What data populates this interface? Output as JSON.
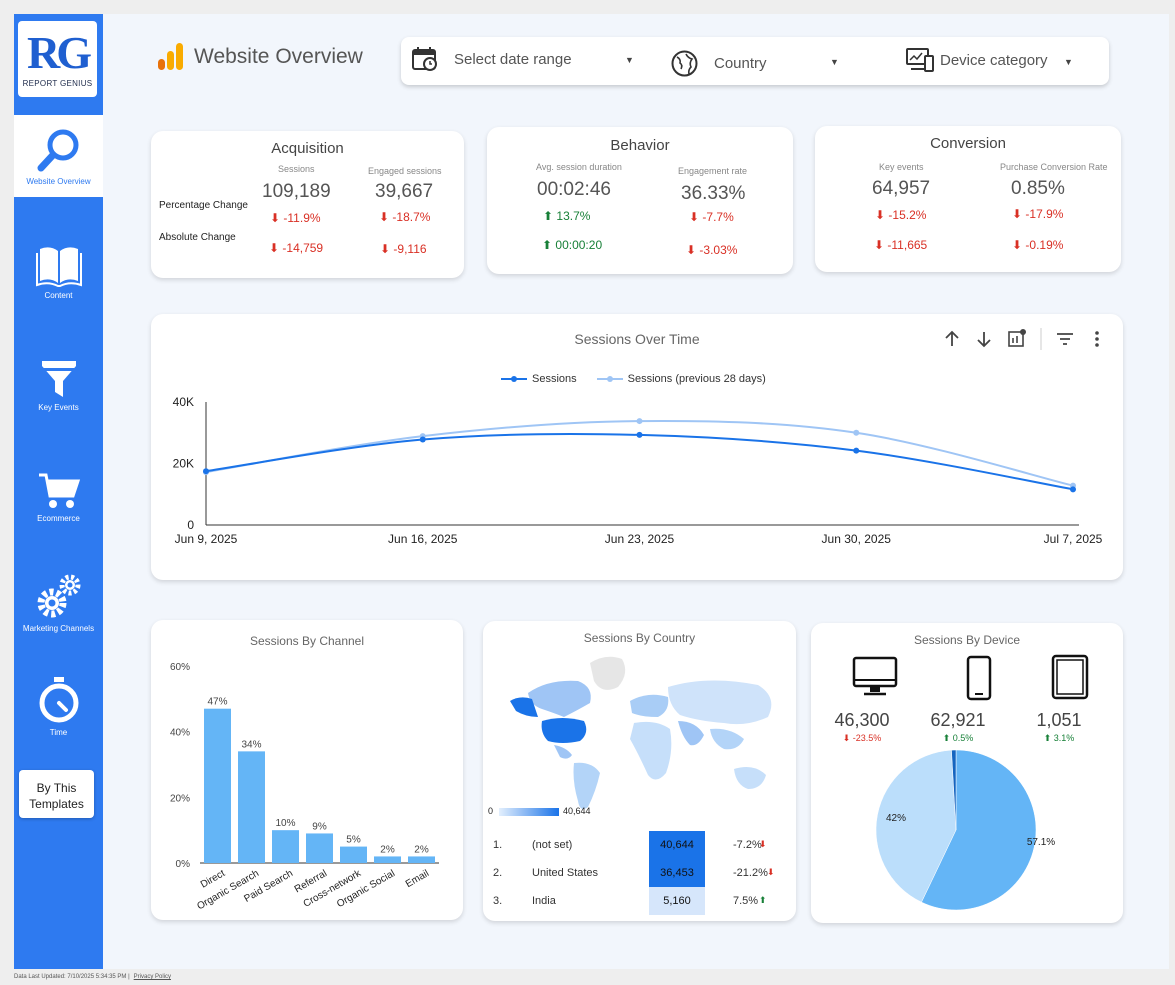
{
  "sidebar": {
    "logo_mark": "RG",
    "logo_text": "REPORT GENIUS",
    "items": [
      {
        "label": "Website Overview"
      },
      {
        "label": "Content"
      },
      {
        "label": "Key Events"
      },
      {
        "label": "Ecommerce"
      },
      {
        "label": "Marketing Channels"
      },
      {
        "label": "Time"
      }
    ],
    "templates_button": "By This Templates"
  },
  "header": {
    "title": "Website Overview"
  },
  "filters": {
    "date": "Select date range",
    "country": "Country",
    "device": "Device category"
  },
  "acquisition": {
    "title": "Acquisition",
    "col1": "Sessions",
    "col2": "Engaged sessions",
    "val1": "109,189",
    "val2": "39,667",
    "row1_label": "Percentage Change",
    "row2_label": "Absolute Change",
    "pct1": "-11.9%",
    "pct2": "-18.7%",
    "abs1": "-14,759",
    "abs2": "-9,116"
  },
  "behavior": {
    "title": "Behavior",
    "col1": "Avg. session duration",
    "col2": "Engagement rate",
    "val1": "00:02:46",
    "val2": "36.33%",
    "pct1": "13.7%",
    "pct2": "-7.7%",
    "abs1": "00:00:20",
    "abs2": "-3.03%"
  },
  "conversion": {
    "title": "Conversion",
    "col1": "Key events",
    "col2": "Purchase Conversion Rate",
    "val1": "64,957",
    "val2": "0.85%",
    "pct1": "-15.2%",
    "pct2": "-17.9%",
    "abs1": "-11,665",
    "abs2": "-0.19%"
  },
  "colors": {
    "primary": "#2e7af0",
    "series1": "#1a73e8",
    "series2": "#9fc5f5",
    "negative": "#d93025",
    "positive": "#188038"
  },
  "chart_data": [
    {
      "type": "line",
      "title": "Sessions Over Time",
      "x": [
        "Jun 9, 2025",
        "Jun 16, 2025",
        "Jun 23, 2025",
        "Jun 30, 2025",
        "Jul 7, 2025"
      ],
      "series": [
        {
          "name": "Sessions",
          "values": [
            17500,
            27800,
            29300,
            24200,
            11600
          ]
        },
        {
          "name": "Sessions (previous 28 days)",
          "values": [
            17200,
            28900,
            33800,
            30000,
            12800
          ]
        }
      ],
      "yticks": [
        "0",
        "20K",
        "40K"
      ],
      "ylim": [
        0,
        40000
      ],
      "legend": "top-center",
      "grid": false
    },
    {
      "type": "bar",
      "title": "Sessions By Channel",
      "categories": [
        "Direct",
        "Organic Search",
        "Paid Search",
        "Referral",
        "Cross-network",
        "Organic Social",
        "Email"
      ],
      "values": [
        47,
        34,
        10,
        9,
        5,
        2,
        2
      ],
      "labels": [
        "47%",
        "34%",
        "10%",
        "9%",
        "5%",
        "2%",
        "2%"
      ],
      "yticks": [
        "0%",
        "20%",
        "40%",
        "60%"
      ],
      "ylim": [
        0,
        60
      ]
    },
    {
      "type": "table",
      "title": "Sessions By Country",
      "legend_min": "0",
      "legend_max": "40,644",
      "rows": [
        {
          "rank": "1.",
          "country": "(not set)",
          "sessions": "40,644",
          "change": "-7.2%",
          "direction": "down"
        },
        {
          "rank": "2.",
          "country": "United States",
          "sessions": "36,453",
          "change": "-21.2%",
          "direction": "down"
        },
        {
          "rank": "3.",
          "country": "India",
          "sessions": "5,160",
          "change": "7.5%",
          "direction": "up"
        }
      ]
    },
    {
      "type": "pie",
      "title": "Sessions By Device",
      "devices": [
        {
          "icon": "desktop-icon",
          "value": "46,300",
          "change": "-23.5%",
          "direction": "down"
        },
        {
          "icon": "mobile-icon",
          "value": "62,921",
          "change": "0.5%",
          "direction": "up"
        },
        {
          "icon": "tablet-icon",
          "value": "1,051",
          "change": "3.1%",
          "direction": "up"
        }
      ],
      "slices": [
        {
          "value": 57.1,
          "label": "57.1%",
          "color": "#64b5f6"
        },
        {
          "value": 42,
          "label": "42%",
          "color": "#bbdefb"
        },
        {
          "value": 0.9,
          "label": "",
          "color": "#1565c0"
        }
      ]
    }
  ],
  "footer": {
    "updated": "Data Last Updated: 7/10/2025 5:34:35 PM",
    "privacy": "Privacy Policy"
  }
}
